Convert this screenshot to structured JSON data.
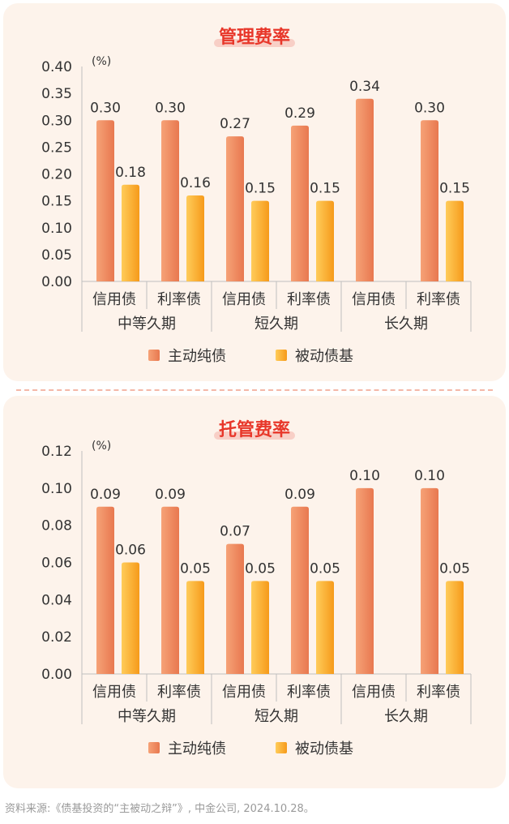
{
  "chart_data": [
    {
      "type": "bar",
      "title": "管理费率",
      "unit": "(%)",
      "group_labels": [
        "中等久期",
        "短久期",
        "长久期"
      ],
      "categories": [
        "信用债",
        "利率债",
        "信用债",
        "利率债",
        "信用债",
        "利率债"
      ],
      "series": [
        {
          "name": "主动纯债",
          "values": [
            0.3,
            0.3,
            0.27,
            0.29,
            0.34,
            0.3
          ],
          "labels": [
            "0.30",
            "0.30",
            "0.27",
            "0.29",
            "0.34",
            "0.30"
          ]
        },
        {
          "name": "被动债基",
          "values": [
            0.18,
            0.16,
            0.15,
            0.15,
            null,
            0.15
          ],
          "labels": [
            "0.18",
            "0.16",
            "0.15",
            "0.15",
            "",
            "0.15"
          ]
        }
      ],
      "ylim": [
        0,
        0.4
      ],
      "yticks": [
        "0.00",
        "0.05",
        "0.10",
        "0.15",
        "0.20",
        "0.25",
        "0.30",
        "0.35",
        "0.40"
      ],
      "legend": "bottom",
      "grid": false
    },
    {
      "type": "bar",
      "title": "托管费率",
      "unit": "(%)",
      "group_labels": [
        "中等久期",
        "短久期",
        "长久期"
      ],
      "categories": [
        "信用债",
        "利率债",
        "信用债",
        "利率债",
        "信用债",
        "利率债"
      ],
      "series": [
        {
          "name": "主动纯债",
          "values": [
            0.09,
            0.09,
            0.07,
            0.09,
            0.1,
            0.1
          ],
          "labels": [
            "0.09",
            "0.09",
            "0.07",
            "0.09",
            "0.10",
            "0.10"
          ]
        },
        {
          "name": "被动债基",
          "values": [
            0.06,
            0.05,
            0.05,
            0.05,
            null,
            0.05
          ],
          "labels": [
            "0.06",
            "0.05",
            "0.05",
            "0.05",
            "",
            "0.05"
          ]
        }
      ],
      "ylim": [
        0,
        0.12
      ],
      "yticks": [
        "0.00",
        "0.02",
        "0.04",
        "0.06",
        "0.08",
        "0.10",
        "0.12"
      ],
      "legend": "bottom",
      "grid": false
    }
  ],
  "source": "资料来源:《债基投资的“主被动之辩”》, 中金公司, 2024.10.28。",
  "colors": {
    "active_top": "#f6a277",
    "active_bottom": "#e8784f",
    "passive_top": "#ffcc5a",
    "passive_bottom": "#f69a1a",
    "title": "#e8372a",
    "text": "#333333",
    "axis": "#bfbfbf"
  }
}
